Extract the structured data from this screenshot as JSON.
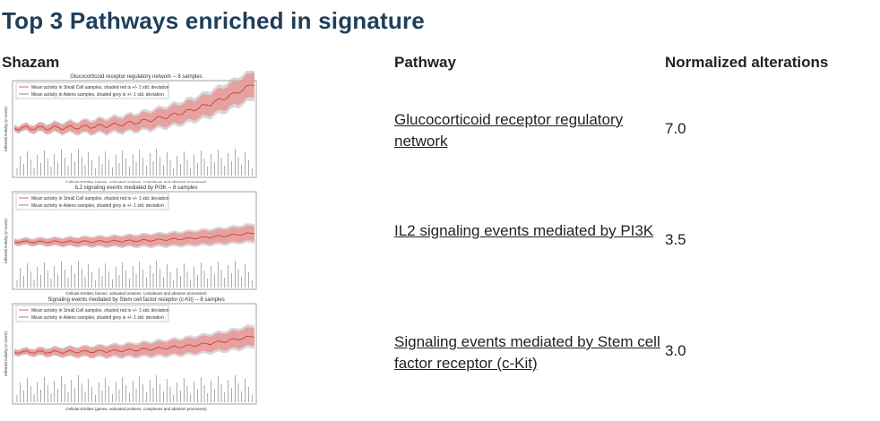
{
  "page": {
    "title": "Top 3 Pathways enriched in signature"
  },
  "table": {
    "headers": {
      "shazam": "Shazam",
      "pathway": "Pathway",
      "normalized": "Normalized alterations"
    },
    "rows": [
      {
        "pathway": "Glucocorticoid receptor regulatory network",
        "value": "7.0",
        "plot": {
          "title": "Glucocorticoid receptor regulatory network -- 8 samples",
          "legend_red": "Mean activity in Small Cell samples, shaded red is +/- 1 std. deviation",
          "legend_grey": "Mean activity in Adeno samples, shaded grey is +/- 1 std. deviation",
          "ylabel": "Inferred Activity (z-score)",
          "xlabel": "Cellular Entities (genes, activated protiens, complexes and abstract processes)"
        }
      },
      {
        "pathway": "IL2 signaling events mediated by PI3K",
        "value": "3.5",
        "plot": {
          "title": "IL2 signaling events mediated by PI3K -- 8 samples",
          "legend_red": "Mean activity in Small Cell samples, shaded red is +/- 1 std. deviation",
          "legend_grey": "Mean activity in Adeno samples, shaded grey is +/- 1 std. deviation",
          "ylabel": "Inferred Activity (z-score)",
          "xlabel": "Cellular Entities (genes, activated protiens, complexes and abstract processes)"
        }
      },
      {
        "pathway": "Signaling events mediated by Stem cell factor receptor (c-Kit)",
        "value": "3.0",
        "plot": {
          "title": "Signaling events mediated by Stem cell factor receptor (c-Kit) -- 8 samples",
          "legend_red": "Mean activity in Small Cell samples, shaded red is +/- 1 std. deviation",
          "legend_grey": "Mean activity in Adeno samples, shaded grey is +/- 1 std. deviation",
          "ylabel": "Inferred Activity (z-score)",
          "xlabel": "Cellular Entities (genes, activated protiens, complexes and abstract processes)"
        }
      }
    ]
  },
  "colors": {
    "title": "#1f3e5a",
    "red_band": "#f08a8a",
    "grey_band": "#bdbdbd",
    "red_line": "#c0392b"
  }
}
